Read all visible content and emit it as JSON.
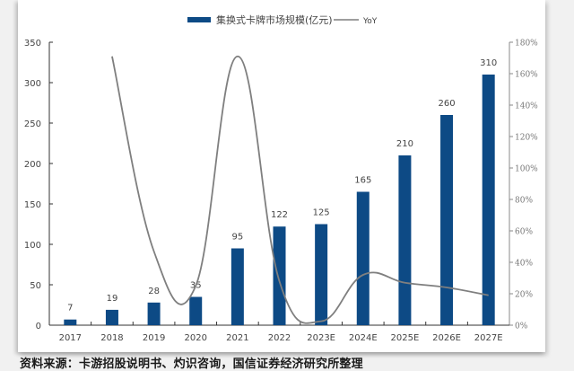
{
  "chart_data": {
    "type": "bar",
    "title": "",
    "legend": [
      {
        "name": "集换式卡牌市场规模(亿元)",
        "kind": "bar",
        "color": "#0d4a85"
      },
      {
        "name": "YoY",
        "kind": "line",
        "color": "#7f7f7f"
      }
    ],
    "legend_position": "top",
    "categories": [
      "2017",
      "2018",
      "2019",
      "2020",
      "2021",
      "2022",
      "2023E",
      "2024E",
      "2025E",
      "2026E",
      "2027E"
    ],
    "series": [
      {
        "name": "集换式卡牌市场规模(亿元)",
        "type": "bar",
        "axis": "left",
        "values": [
          7,
          19,
          28,
          35,
          95,
          122,
          125,
          165,
          210,
          260,
          310
        ],
        "labels": [
          "7",
          "19",
          "28",
          "35",
          "95",
          "122",
          "125",
          "165",
          "210",
          "260",
          "310"
        ]
      },
      {
        "name": "YoY",
        "type": "line",
        "axis": "right",
        "smooth": true,
        "values": [
          null,
          171,
          47,
          25,
          171,
          28,
          2.5,
          32,
          27,
          24,
          19
        ]
      }
    ],
    "left_axis": {
      "min": 0,
      "max": 350,
      "ticks": [
        "0",
        "50",
        "100",
        "150",
        "200",
        "250",
        "300",
        "350"
      ]
    },
    "right_axis": {
      "min": 0,
      "max": 180,
      "unit": "%",
      "ticks": [
        "0%",
        "20%",
        "40%",
        "60%",
        "80%",
        "100%",
        "120%",
        "140%",
        "160%",
        "180%"
      ]
    },
    "xlabel": "",
    "ylabel": "",
    "ylim": [
      0,
      350
    ],
    "y2lim": [
      0,
      180
    ],
    "grid": false
  },
  "source_note": "资料来源：卡游招股说明书、灼识咨询，国信证券经济研究所整理",
  "colors": {
    "bar": "#0d4a85",
    "line": "#7f7f7f",
    "axis": "#333333",
    "right_axis": "#8a8a8a",
    "text": "#444444"
  }
}
